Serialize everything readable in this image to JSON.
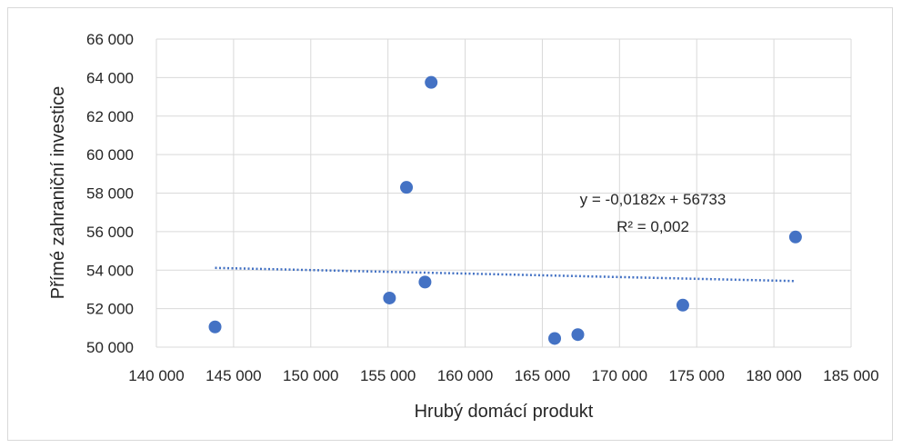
{
  "chart_data": {
    "type": "scatter",
    "title": "",
    "xlabel": "Hrubý domácí produkt",
    "ylabel": "Přímé zahraniční investice",
    "xlim": [
      140000,
      185000
    ],
    "ylim": [
      50000,
      66000
    ],
    "x_ticks": [
      140000,
      145000,
      150000,
      155000,
      160000,
      165000,
      170000,
      175000,
      180000,
      185000
    ],
    "y_ticks": [
      50000,
      52000,
      54000,
      56000,
      58000,
      60000,
      62000,
      64000,
      66000
    ],
    "x_tick_labels": [
      "140 000",
      "145 000",
      "150 000",
      "155 000",
      "160 000",
      "165 000",
      "170 000",
      "175 000",
      "180 000",
      "185 000"
    ],
    "y_tick_labels": [
      "50 000",
      "52 000",
      "54 000",
      "56 000",
      "58 000",
      "60 000",
      "62 000",
      "64 000",
      "66 000"
    ],
    "grid": true,
    "marker_color": "#4472c4",
    "points": [
      {
        "x": 143800,
        "y": 51050
      },
      {
        "x": 155100,
        "y": 52550
      },
      {
        "x": 156200,
        "y": 58300
      },
      {
        "x": 157400,
        "y": 53380
      },
      {
        "x": 157800,
        "y": 63750
      },
      {
        "x": 165800,
        "y": 50450
      },
      {
        "x": 167300,
        "y": 50650
      },
      {
        "x": 174100,
        "y": 52180
      },
      {
        "x": 181400,
        "y": 55720
      }
    ],
    "trendline": {
      "type": "linear",
      "slope": -0.0182,
      "intercept": 56733,
      "x_range": [
        143800,
        181400
      ],
      "color": "#4472c4",
      "style": "dotted",
      "equation_text": "y = -0,0182x + 56733",
      "r2_text": "R² = 0,002"
    }
  }
}
